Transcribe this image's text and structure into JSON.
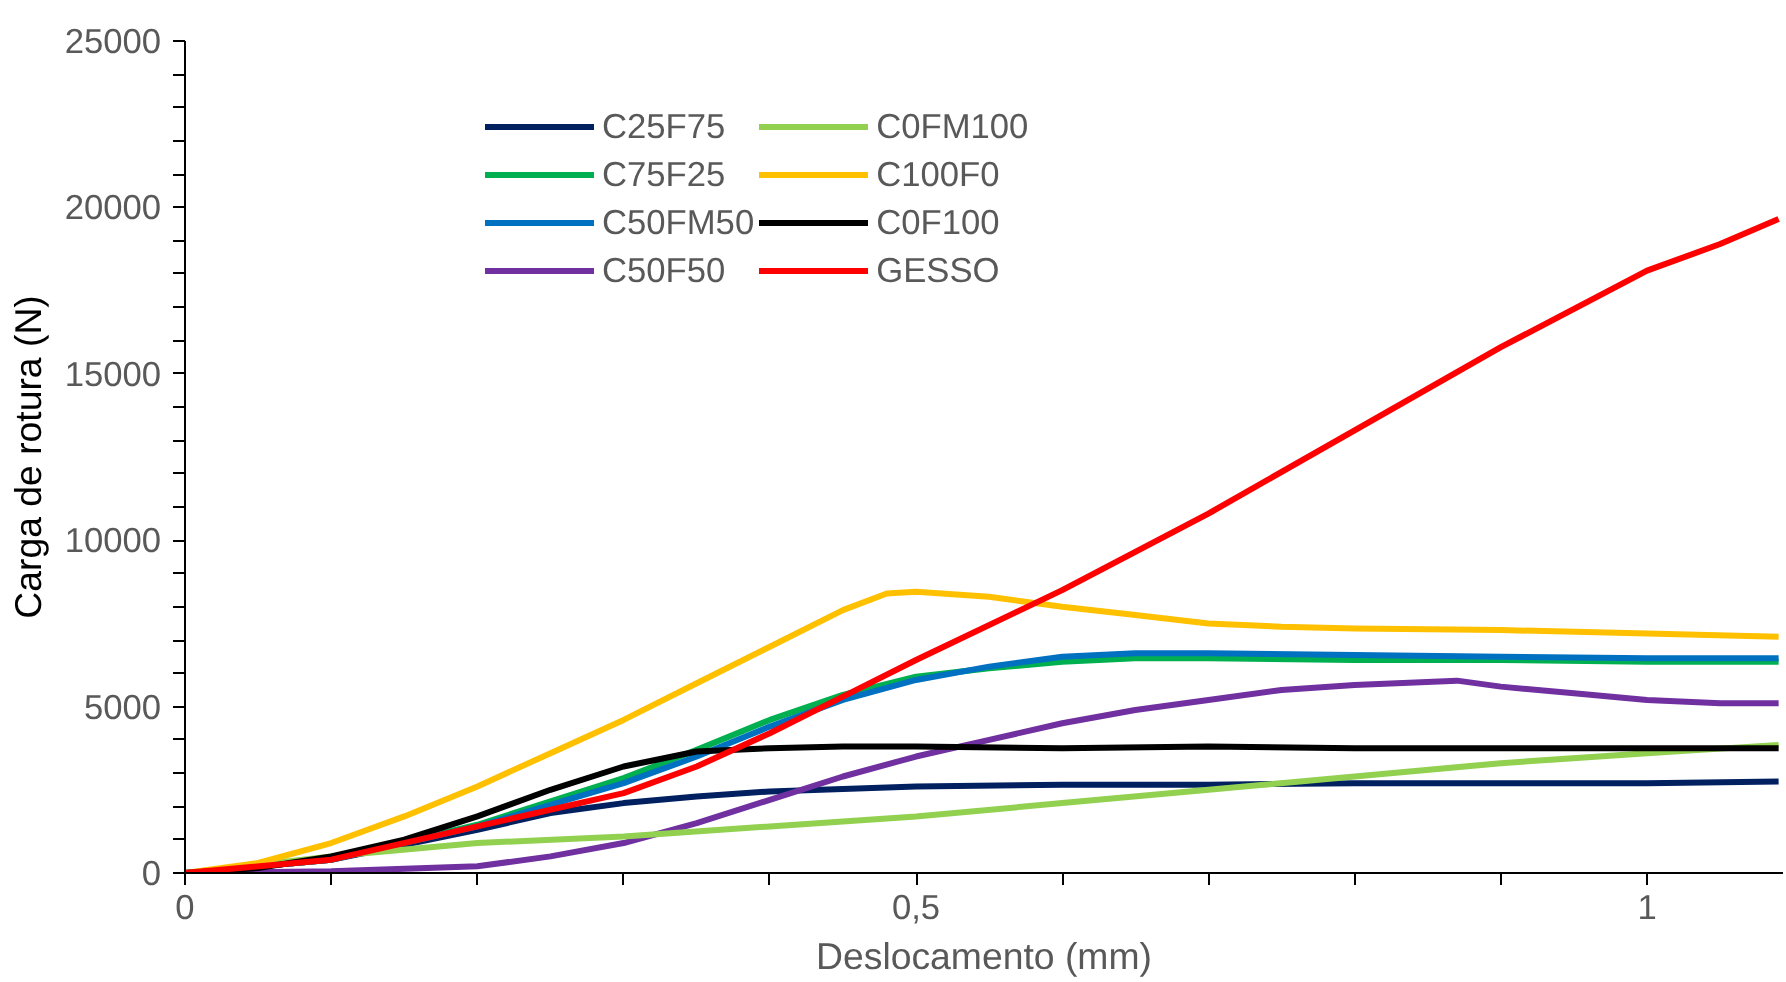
{
  "chart_data": {
    "type": "line",
    "xlabel": "Deslocamento (mm)",
    "ylabel": "Carga de rotura (N)",
    "xlim": [
      0,
      1.093
    ],
    "ylim": [
      0,
      25000
    ],
    "xticks": [
      0,
      {
        "value": 0.1,
        "label": null
      },
      {
        "value": 0.2,
        "label": null
      },
      {
        "value": 0.3,
        "label": null
      },
      {
        "value": 0.4,
        "label": null
      },
      {
        "value": 0.5,
        "label": "0,5"
      },
      {
        "value": 0.6,
        "label": null
      },
      {
        "value": 0.7,
        "label": null
      },
      {
        "value": 0.8,
        "label": null
      },
      {
        "value": 0.9,
        "label": null
      },
      1
    ],
    "yticks": [
      0,
      {
        "value": 1000,
        "label": null
      },
      {
        "value": 2000,
        "label": null
      },
      {
        "value": 3000,
        "label": null
      },
      {
        "value": 4000,
        "label": null
      },
      5000,
      {
        "value": 6000,
        "label": null
      },
      {
        "value": 7000,
        "label": null
      },
      {
        "value": 8000,
        "label": null
      },
      {
        "value": 9000,
        "label": null
      },
      10000,
      {
        "value": 11000,
        "label": null
      },
      {
        "value": 12000,
        "label": null
      },
      {
        "value": 13000,
        "label": null
      },
      {
        "value": 14000,
        "label": null
      },
      15000,
      {
        "value": 16000,
        "label": null
      },
      {
        "value": 17000,
        "label": null
      },
      {
        "value": 18000,
        "label": null
      },
      {
        "value": 19000,
        "label": null
      },
      20000,
      {
        "value": 21000,
        "label": null
      },
      {
        "value": 22000,
        "label": null
      },
      {
        "value": 23000,
        "label": null
      },
      {
        "value": 24000,
        "label": null
      },
      25000
    ],
    "grid": false,
    "legend": "top",
    "marker": "none",
    "line_style": "solid",
    "series": [
      {
        "name": "C25F75",
        "color": "#002060",
        "x": [
          0,
          0.1,
          0.2,
          0.25,
          0.3,
          0.35,
          0.4,
          0.5,
          0.6,
          0.7,
          0.8,
          0.9,
          1.0,
          1.09
        ],
        "values": [
          0,
          400,
          1300,
          1800,
          2100,
          2300,
          2450,
          2600,
          2650,
          2650,
          2700,
          2700,
          2700,
          2750
        ]
      },
      {
        "name": "C75F25",
        "color": "#00b050",
        "x": [
          0,
          0.1,
          0.2,
          0.3,
          0.35,
          0.4,
          0.45,
          0.5,
          0.55,
          0.6,
          0.65,
          0.7,
          0.8,
          0.9,
          1.0,
          1.09
        ],
        "values": [
          0,
          400,
          1450,
          2850,
          3700,
          4600,
          5350,
          5900,
          6150,
          6350,
          6450,
          6450,
          6400,
          6400,
          6350,
          6350
        ]
      },
      {
        "name": "C50FM50",
        "color": "#0070c0",
        "x": [
          0,
          0.1,
          0.2,
          0.3,
          0.35,
          0.4,
          0.45,
          0.5,
          0.55,
          0.6,
          0.65,
          0.7,
          0.8,
          0.9,
          1.0,
          1.09
        ],
        "values": [
          0,
          400,
          1400,
          2700,
          3500,
          4400,
          5200,
          5800,
          6200,
          6500,
          6600,
          6600,
          6550,
          6500,
          6450,
          6450
        ]
      },
      {
        "name": "C50F50",
        "color": "#7030a0",
        "x": [
          0,
          0.1,
          0.2,
          0.25,
          0.3,
          0.35,
          0.4,
          0.45,
          0.5,
          0.55,
          0.6,
          0.65,
          0.7,
          0.75,
          0.8,
          0.87,
          0.9,
          0.95,
          1.0,
          1.05,
          1.09
        ],
        "values": [
          0,
          50,
          200,
          500,
          900,
          1500,
          2200,
          2900,
          3500,
          4000,
          4500,
          4900,
          5200,
          5500,
          5650,
          5780,
          5600,
          5400,
          5200,
          5100,
          5100
        ]
      },
      {
        "name": "C0FM100",
        "color": "#92d050",
        "x": [
          0,
          0.1,
          0.2,
          0.3,
          0.4,
          0.5,
          0.6,
          0.7,
          0.8,
          0.9,
          1.0,
          1.09
        ],
        "values": [
          0,
          500,
          900,
          1100,
          1400,
          1700,
          2100,
          2500,
          2900,
          3300,
          3600,
          3850
        ]
      },
      {
        "name": "C100F0",
        "color": "#ffc000",
        "x": [
          0,
          0.05,
          0.1,
          0.15,
          0.2,
          0.25,
          0.3,
          0.35,
          0.4,
          0.45,
          0.48,
          0.5,
          0.55,
          0.6,
          0.65,
          0.7,
          0.75,
          0.8,
          0.9,
          1.0,
          1.09
        ],
        "values": [
          0,
          300,
          900,
          1700,
          2600,
          3600,
          4600,
          5700,
          6800,
          7900,
          8400,
          8450,
          8300,
          8000,
          7750,
          7500,
          7400,
          7350,
          7300,
          7200,
          7100
        ]
      },
      {
        "name": "C0F100",
        "color": "#000000",
        "x": [
          0,
          0.05,
          0.1,
          0.15,
          0.2,
          0.25,
          0.3,
          0.35,
          0.4,
          0.45,
          0.5,
          0.6,
          0.7,
          0.8,
          0.9,
          1.0,
          1.09
        ],
        "values": [
          0,
          150,
          500,
          1000,
          1700,
          2500,
          3200,
          3650,
          3750,
          3800,
          3800,
          3750,
          3800,
          3750,
          3750,
          3750,
          3750
        ]
      },
      {
        "name": "GESSO",
        "color": "#ff0000",
        "x": [
          0,
          0.1,
          0.2,
          0.3,
          0.35,
          0.4,
          0.45,
          0.5,
          0.6,
          0.7,
          0.8,
          0.9,
          1.0,
          1.05,
          1.09
        ],
        "values": [
          0,
          400,
          1400,
          2400,
          3200,
          4200,
          5300,
          6400,
          8500,
          10800,
          13300,
          15800,
          18100,
          18900,
          19650
        ]
      }
    ]
  }
}
